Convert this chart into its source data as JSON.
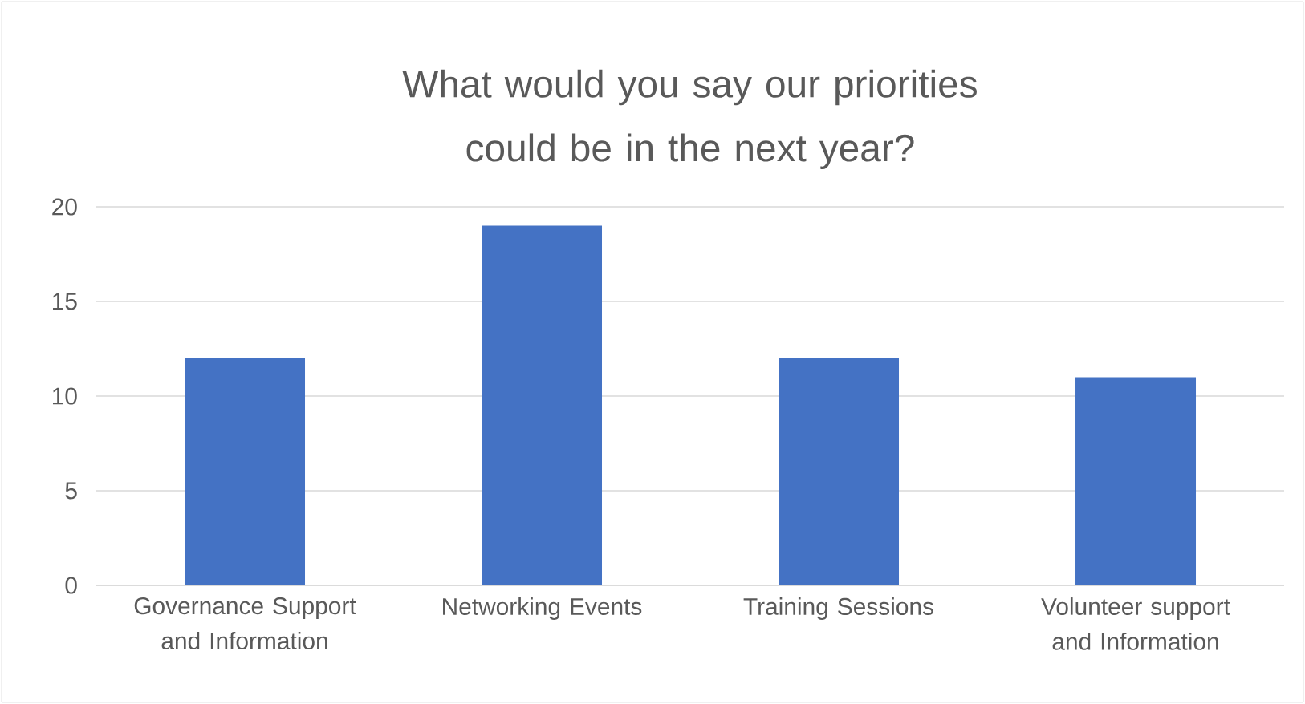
{
  "chart_data": {
    "type": "bar",
    "title": "What would you say our priorities could be in the next year?",
    "categories": [
      "Governance Support and Information",
      "Networking Events",
      "Training Sessions",
      "Volunteer support and Information"
    ],
    "values": [
      12,
      19,
      12,
      11
    ],
    "color": "#4472c4",
    "ylim": [
      0,
      20
    ],
    "yticks": [
      0,
      5,
      10,
      15,
      20
    ],
    "grid": "y"
  }
}
